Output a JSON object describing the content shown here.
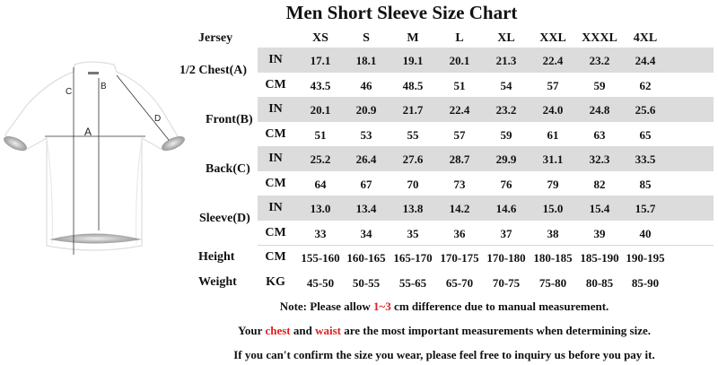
{
  "title": "Men Short Sleeve Size Chart",
  "header": {
    "label": "Jersey",
    "sizes": [
      "XS",
      "S",
      "M",
      "L",
      "XL",
      "XXL",
      "XXXL",
      "4XL"
    ]
  },
  "diagram": {
    "labels": {
      "a": "A",
      "b": "B",
      "c": "C",
      "d": "D"
    }
  },
  "rows": [
    {
      "label": "1/2 Chest(A)",
      "in_unit": "IN",
      "cm_unit": "CM",
      "in": [
        "17.1",
        "18.1",
        "19.1",
        "20.1",
        "21.3",
        "22.4",
        "23.2",
        "24.4"
      ],
      "cm": [
        "43.5",
        "46",
        "48.5",
        "51",
        "54",
        "57",
        "59",
        "62"
      ]
    },
    {
      "label": "Front(B)",
      "in_unit": "IN",
      "cm_unit": "CM",
      "in": [
        "20.1",
        "20.9",
        "21.7",
        "22.4",
        "23.2",
        "24.0",
        "24.8",
        "25.6"
      ],
      "cm": [
        "51",
        "53",
        "55",
        "57",
        "59",
        "61",
        "63",
        "65"
      ]
    },
    {
      "label": "Back(C)",
      "in_unit": "IN",
      "cm_unit": "CM",
      "in": [
        "25.2",
        "26.4",
        "27.6",
        "28.7",
        "29.9",
        "31.1",
        "32.3",
        "33.5"
      ],
      "cm": [
        "64",
        "67",
        "70",
        "73",
        "76",
        "79",
        "82",
        "85"
      ]
    },
    {
      "label": "Sleeve(D)",
      "in_unit": "IN",
      "cm_unit": "CM",
      "in": [
        "13.0",
        "13.4",
        "13.8",
        "14.2",
        "14.6",
        "15.0",
        "15.4",
        "15.7"
      ],
      "cm": [
        "33",
        "34",
        "35",
        "36",
        "37",
        "38",
        "39",
        "40"
      ]
    }
  ],
  "height": {
    "label": "Height",
    "unit": "CM",
    "values": [
      "155-160",
      "160-165",
      "165-170",
      "170-175",
      "170-180",
      "180-185",
      "185-190",
      "190-195"
    ]
  },
  "weight": {
    "label": "Weight",
    "unit": "KG",
    "values": [
      "45-50",
      "50-55",
      "55-65",
      "65-70",
      "70-75",
      "75-80",
      "80-85",
      "85-90"
    ]
  },
  "notes": {
    "line1": {
      "pre": "Note: Please allow ",
      "highlight": "1~3",
      "post": " cm difference due to manual measurement."
    },
    "line2": {
      "pre": "Your ",
      "h1": "chest",
      "mid": " and ",
      "h2": "waist",
      "post": " are the most important measurements when determining size."
    },
    "line3": "If you can't confirm the size you wear, please feel free to inquiry us before you pay it."
  },
  "colors": {
    "band": "#dcdcdc",
    "highlight": "#e02020"
  }
}
